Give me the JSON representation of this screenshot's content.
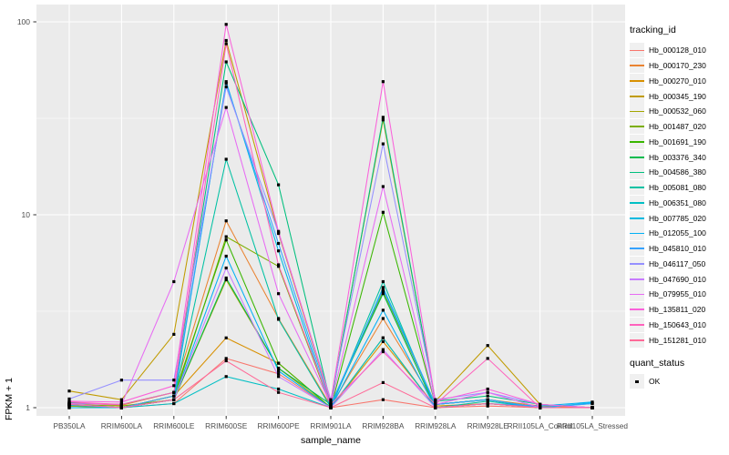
{
  "chart_data": {
    "type": "line",
    "title": "",
    "xlabel": "sample_name",
    "ylabel": "FPKM + 1",
    "y_scale": "log10",
    "y_ticks": [
      1,
      10,
      100
    ],
    "y_minor_ticks": [
      3.1623,
      31.623
    ],
    "ylim": [
      0.93,
      110
    ],
    "grid": true,
    "legend_position": "right",
    "categories": [
      "PB350LA",
      "RRIM600LA",
      "RRIM600LE",
      "RRIM600SE",
      "RRIM600PE",
      "RRIM901LA",
      "RRIM928BA",
      "RRIM928LA",
      "RRIM928LE",
      "RRII105LA_Control",
      "RRII105LA_Stressed"
    ],
    "series": [
      {
        "name": "Hb_000128_010",
        "color": "#F8766D",
        "values": [
          1.03,
          1.0,
          1.05,
          1.8,
          1.5,
          1.0,
          1.1,
          1.0,
          1.02,
          1.0,
          1.0
        ]
      },
      {
        "name": "Hb_000170_230",
        "color": "#EA8331",
        "values": [
          1.06,
          1.03,
          1.2,
          9.3,
          2.9,
          1.02,
          2.9,
          1.04,
          1.1,
          1.02,
          1.0
        ]
      },
      {
        "name": "Hb_000270_010",
        "color": "#D89000",
        "values": [
          1.02,
          1.0,
          1.15,
          2.3,
          1.7,
          1.0,
          2.2,
          1.02,
          1.05,
          1.0,
          1.0
        ]
      },
      {
        "name": "Hb_000345_190",
        "color": "#C09B00",
        "values": [
          1.22,
          1.1,
          2.4,
          80,
          8.0,
          1.07,
          31,
          1.08,
          2.1,
          1.04,
          1.0
        ]
      },
      {
        "name": "Hb_000532_060",
        "color": "#A3A500",
        "values": [
          1.02,
          1.0,
          1.1,
          4.6,
          1.6,
          1.0,
          2.3,
          1.0,
          1.05,
          1.0,
          1.0
        ]
      },
      {
        "name": "Hb_001487_020",
        "color": "#7CAE00",
        "values": [
          1.04,
          1.02,
          1.1,
          7.7,
          5.4,
          1.02,
          4.0,
          1.04,
          1.1,
          1.0,
          1.0
        ]
      },
      {
        "name": "Hb_001691_190",
        "color": "#39B600",
        "values": [
          1.0,
          1.0,
          1.15,
          7.4,
          1.7,
          1.0,
          10.3,
          1.04,
          1.1,
          1.0,
          1.0
        ]
      },
      {
        "name": "Hb_003376_340",
        "color": "#00BB4E",
        "values": [
          1.04,
          1.0,
          1.1,
          4.7,
          1.6,
          1.04,
          3.9,
          1.0,
          1.05,
          1.0,
          1.0
        ]
      },
      {
        "name": "Hb_004586_380",
        "color": "#00BF7D",
        "values": [
          1.06,
          1.04,
          1.2,
          62,
          14.3,
          1.05,
          32,
          1.08,
          1.15,
          1.04,
          1.0
        ]
      },
      {
        "name": "Hb_005081_080",
        "color": "#00C1A3",
        "values": [
          1.0,
          1.0,
          1.1,
          19.4,
          2.87,
          1.0,
          4.5,
          1.0,
          1.08,
          1.0,
          1.0
        ]
      },
      {
        "name": "Hb_006351_080",
        "color": "#00BFC4",
        "values": [
          1.03,
          1.0,
          1.05,
          1.45,
          1.25,
          1.0,
          2.3,
          1.0,
          1.05,
          1.0,
          1.05
        ]
      },
      {
        "name": "Hb_007785_020",
        "color": "#00BAE0",
        "values": [
          1.0,
          1.0,
          1.1,
          49,
          6.5,
          1.0,
          4.2,
          1.04,
          1.1,
          1.0,
          1.06
        ]
      },
      {
        "name": "Hb_012055_100",
        "color": "#00B0F6",
        "values": [
          1.04,
          1.0,
          1.1,
          6.1,
          1.55,
          1.0,
          3.2,
          1.0,
          1.05,
          1.02,
          1.07
        ]
      },
      {
        "name": "Hb_045810_010",
        "color": "#35A2FF",
        "values": [
          1.04,
          1.0,
          1.15,
          48,
          7.1,
          1.04,
          4.1,
          1.04,
          1.1,
          1.0,
          1.05
        ]
      },
      {
        "name": "Hb_046117_050",
        "color": "#9590FF",
        "values": [
          1.11,
          1.39,
          1.39,
          46,
          8.1,
          1.1,
          23.3,
          1.1,
          1.2,
          1.04,
          1.0
        ]
      },
      {
        "name": "Hb_047690_010",
        "color": "#C77CFF",
        "values": [
          1.04,
          1.0,
          1.1,
          5.3,
          1.45,
          1.0,
          2.0,
          1.0,
          1.05,
          1.0,
          1.0
        ]
      },
      {
        "name": "Hb_079955_010",
        "color": "#E76BF3",
        "values": [
          1.05,
          1.04,
          4.5,
          36,
          3.9,
          1.04,
          14,
          1.04,
          1.2,
          1.0,
          1.0
        ]
      },
      {
        "name": "Hb_135811_020",
        "color": "#FA62DB",
        "values": [
          1.08,
          1.07,
          1.3,
          97,
          8.2,
          1.08,
          49,
          1.08,
          1.25,
          1.04,
          1.0
        ]
      },
      {
        "name": "Hb_150643_010",
        "color": "#FF62BC",
        "values": [
          1.07,
          1.04,
          1.2,
          77,
          5.5,
          1.04,
          1.95,
          1.04,
          1.8,
          1.0,
          1.0
        ]
      },
      {
        "name": "Hb_151281_010",
        "color": "#FF6A98",
        "values": [
          1.04,
          1.0,
          1.1,
          1.75,
          1.2,
          1.0,
          1.35,
          1.0,
          1.05,
          1.0,
          1.0
        ]
      }
    ],
    "points": {
      "shape": "square",
      "color": "#000000"
    },
    "legend": {
      "tracking_title": "tracking_id",
      "quant_title": "quant_status",
      "quant_items": [
        {
          "label": "OK",
          "marker": "black-square"
        }
      ]
    },
    "colors": {
      "panel_bg": "#EBEBEB",
      "grid": "#FFFFFF",
      "axis_text": "#4D4D4D",
      "tick_mark": "#333333",
      "legend_key_bg": "#F0F0F0"
    }
  }
}
